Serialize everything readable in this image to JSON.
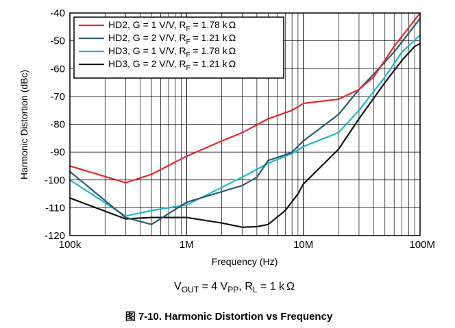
{
  "chart_data": {
    "type": "line",
    "x_scale": "log",
    "xlim": [
      100000,
      100000000
    ],
    "ylim": [
      -120,
      -40
    ],
    "grid": true,
    "legend_position": "top-left",
    "xlabel": "Frequency (Hz)",
    "ylabel": "Harmonic Distortion (dBc)",
    "x_tick_values": [
      100000,
      1000000,
      10000000,
      100000000
    ],
    "x_tick_labels": [
      "100k",
      "1M",
      "10M",
      "100M"
    ],
    "y_tick_values": [
      -40,
      -50,
      -60,
      -70,
      -80,
      -90,
      -100,
      -110,
      -120
    ],
    "y_tick_labels": [
      "-40",
      "-50",
      "-60",
      "-70",
      "-80",
      "-90",
      "-100",
      "-110",
      "-120"
    ],
    "conditions": {
      "v_main": "V",
      "v_sub": "OUT",
      "v_mid": " = 4 V",
      "pp_sub": "PP",
      "comma": ", R",
      "l_sub": "L",
      "tail": " = 1 k",
      "omega": "Ω"
    },
    "caption": "图 7-10. Harmonic Distortion vs Frequency",
    "series": [
      {
        "legend_main": "HD2, G = 1 V/V, R",
        "legend_sub": "F",
        "legend_tail": " = 1.78 k",
        "legend_unit": "Ω",
        "color": "#e8262a",
        "x": [
          100000,
          300000,
          500000,
          1000000,
          2000000,
          3000000,
          5000000,
          8000000,
          10000000,
          20000000,
          30000000,
          40000000,
          60000000,
          100000000
        ],
        "y": [
          -95,
          -101,
          -98,
          -91.5,
          -86,
          -83,
          -78,
          -75,
          -72.5,
          -71,
          -67.5,
          -63,
          -52,
          -40
        ]
      },
      {
        "legend_main": "HD2, G = 2 V/V, R",
        "legend_sub": "F",
        "legend_tail": " = 1.21 k",
        "legend_unit": "Ω",
        "color": "#2b5b6e",
        "x": [
          100000,
          300000,
          500000,
          1000000,
          3000000,
          4000000,
          5000000,
          7000000,
          8000000,
          10000000,
          20000000,
          30000000,
          40000000,
          60000000,
          100000000
        ],
        "y": [
          -97,
          -113.5,
          -116,
          -108,
          -102,
          -99,
          -93,
          -91,
          -90,
          -86,
          -76.5,
          -67.5,
          -62,
          -54,
          -42
        ]
      },
      {
        "legend_main": "HD3, G = 1 V/V, R",
        "legend_sub": "F",
        "legend_tail": " = 1.78 k",
        "legend_unit": "Ω",
        "color": "#1cb8c8",
        "x": [
          100000,
          300000,
          500000,
          1000000,
          3000000,
          5000000,
          8000000,
          10000000,
          20000000,
          30000000,
          50000000,
          70000000,
          100000000
        ],
        "y": [
          -100,
          -113,
          -111,
          -109,
          -99,
          -94,
          -90.5,
          -88,
          -83,
          -75,
          -63,
          -54,
          -48
        ]
      },
      {
        "legend_main": "HD3, G = 2 V/V, R",
        "legend_sub": "F",
        "legend_tail": " = 1.21 k",
        "legend_unit": "Ω",
        "color": "#111111",
        "x": [
          100000,
          300000,
          500000,
          1000000,
          2000000,
          3000000,
          4000000,
          5000000,
          7000000,
          9000000,
          10000000,
          20000000,
          30000000,
          50000000,
          70000000,
          90000000,
          100000000
        ],
        "y": [
          -106.5,
          -114,
          -113.5,
          -113.5,
          -115.5,
          -117,
          -116.8,
          -116,
          -111,
          -105,
          -101.5,
          -89,
          -78,
          -65,
          -57,
          -52,
          -51
        ]
      }
    ]
  }
}
